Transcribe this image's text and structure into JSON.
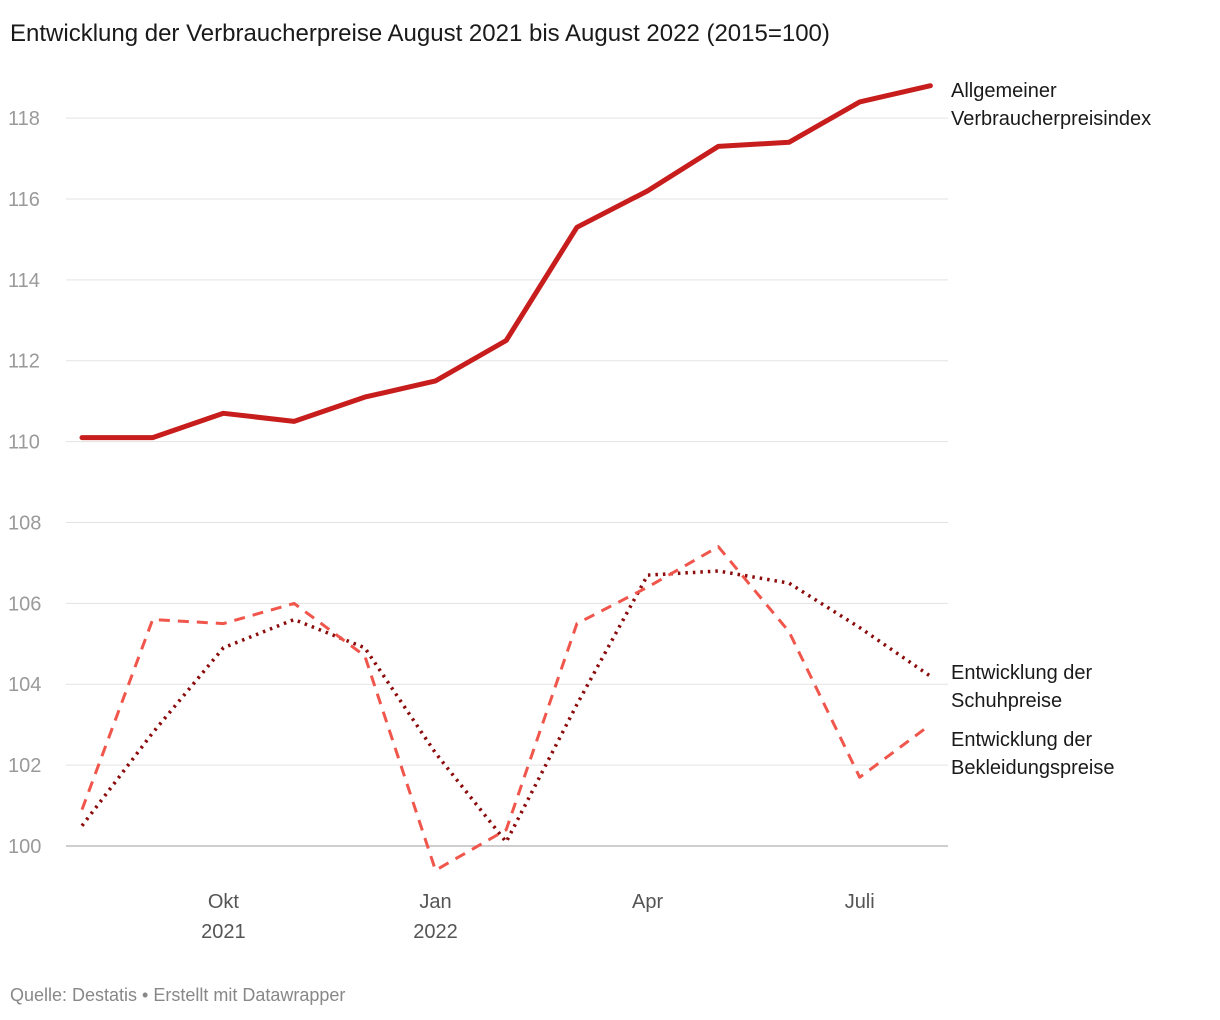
{
  "title": "Entwicklung der Verbraucherpreise August 2021 bis August 2022 (2015=100)",
  "source": "Quelle: Destatis • Erstellt mit Datawrapper",
  "chart_data": {
    "type": "line",
    "title": "Entwicklung der Verbraucherpreise August 2021 bis August 2022 (2015=100)",
    "x": [
      "2021-08",
      "2021-09",
      "2021-10",
      "2021-11",
      "2021-12",
      "2022-01",
      "2022-02",
      "2022-03",
      "2022-04",
      "2022-05",
      "2022-06",
      "2022-07",
      "2022-08"
    ],
    "x_ticks": [
      {
        "x": "2021-10",
        "line1": "Okt",
        "line2": "2021"
      },
      {
        "x": "2022-01",
        "line1": "Jan",
        "line2": "2022"
      },
      {
        "x": "2022-04",
        "line1": "Apr",
        "line2": ""
      },
      {
        "x": "2022-07",
        "line1": "Juli",
        "line2": ""
      }
    ],
    "y_ticks": [
      100,
      102,
      104,
      106,
      108,
      110,
      112,
      114,
      116,
      118
    ],
    "ylim": [
      99.3,
      119
    ],
    "grid": true,
    "series": [
      {
        "name_lines": [
          "Allgemeiner",
          "Verbraucherpreisindex"
        ],
        "values": [
          110.1,
          110.1,
          110.7,
          110.5,
          111.1,
          111.5,
          112.5,
          115.3,
          116.2,
          117.3,
          117.4,
          118.4,
          118.8
        ],
        "color": "#c71e1d",
        "style": "solid"
      },
      {
        "name_lines": [
          "Entwicklung der",
          "Schuhpreise"
        ],
        "values": [
          100.5,
          102.8,
          104.9,
          105.6,
          104.9,
          102.3,
          100.1,
          103.5,
          106.7,
          106.8,
          106.5,
          105.4,
          104.2
        ],
        "color": "#8b0a0a",
        "style": "dotted"
      },
      {
        "name_lines": [
          "Entwicklung der",
          "Bekleidungspreise"
        ],
        "values": [
          100.9,
          105.6,
          105.5,
          106.0,
          104.7,
          99.4,
          100.4,
          105.5,
          106.4,
          107.4,
          105.3,
          101.7,
          103.0
        ],
        "color": "#f0564b",
        "style": "dashed"
      }
    ]
  }
}
